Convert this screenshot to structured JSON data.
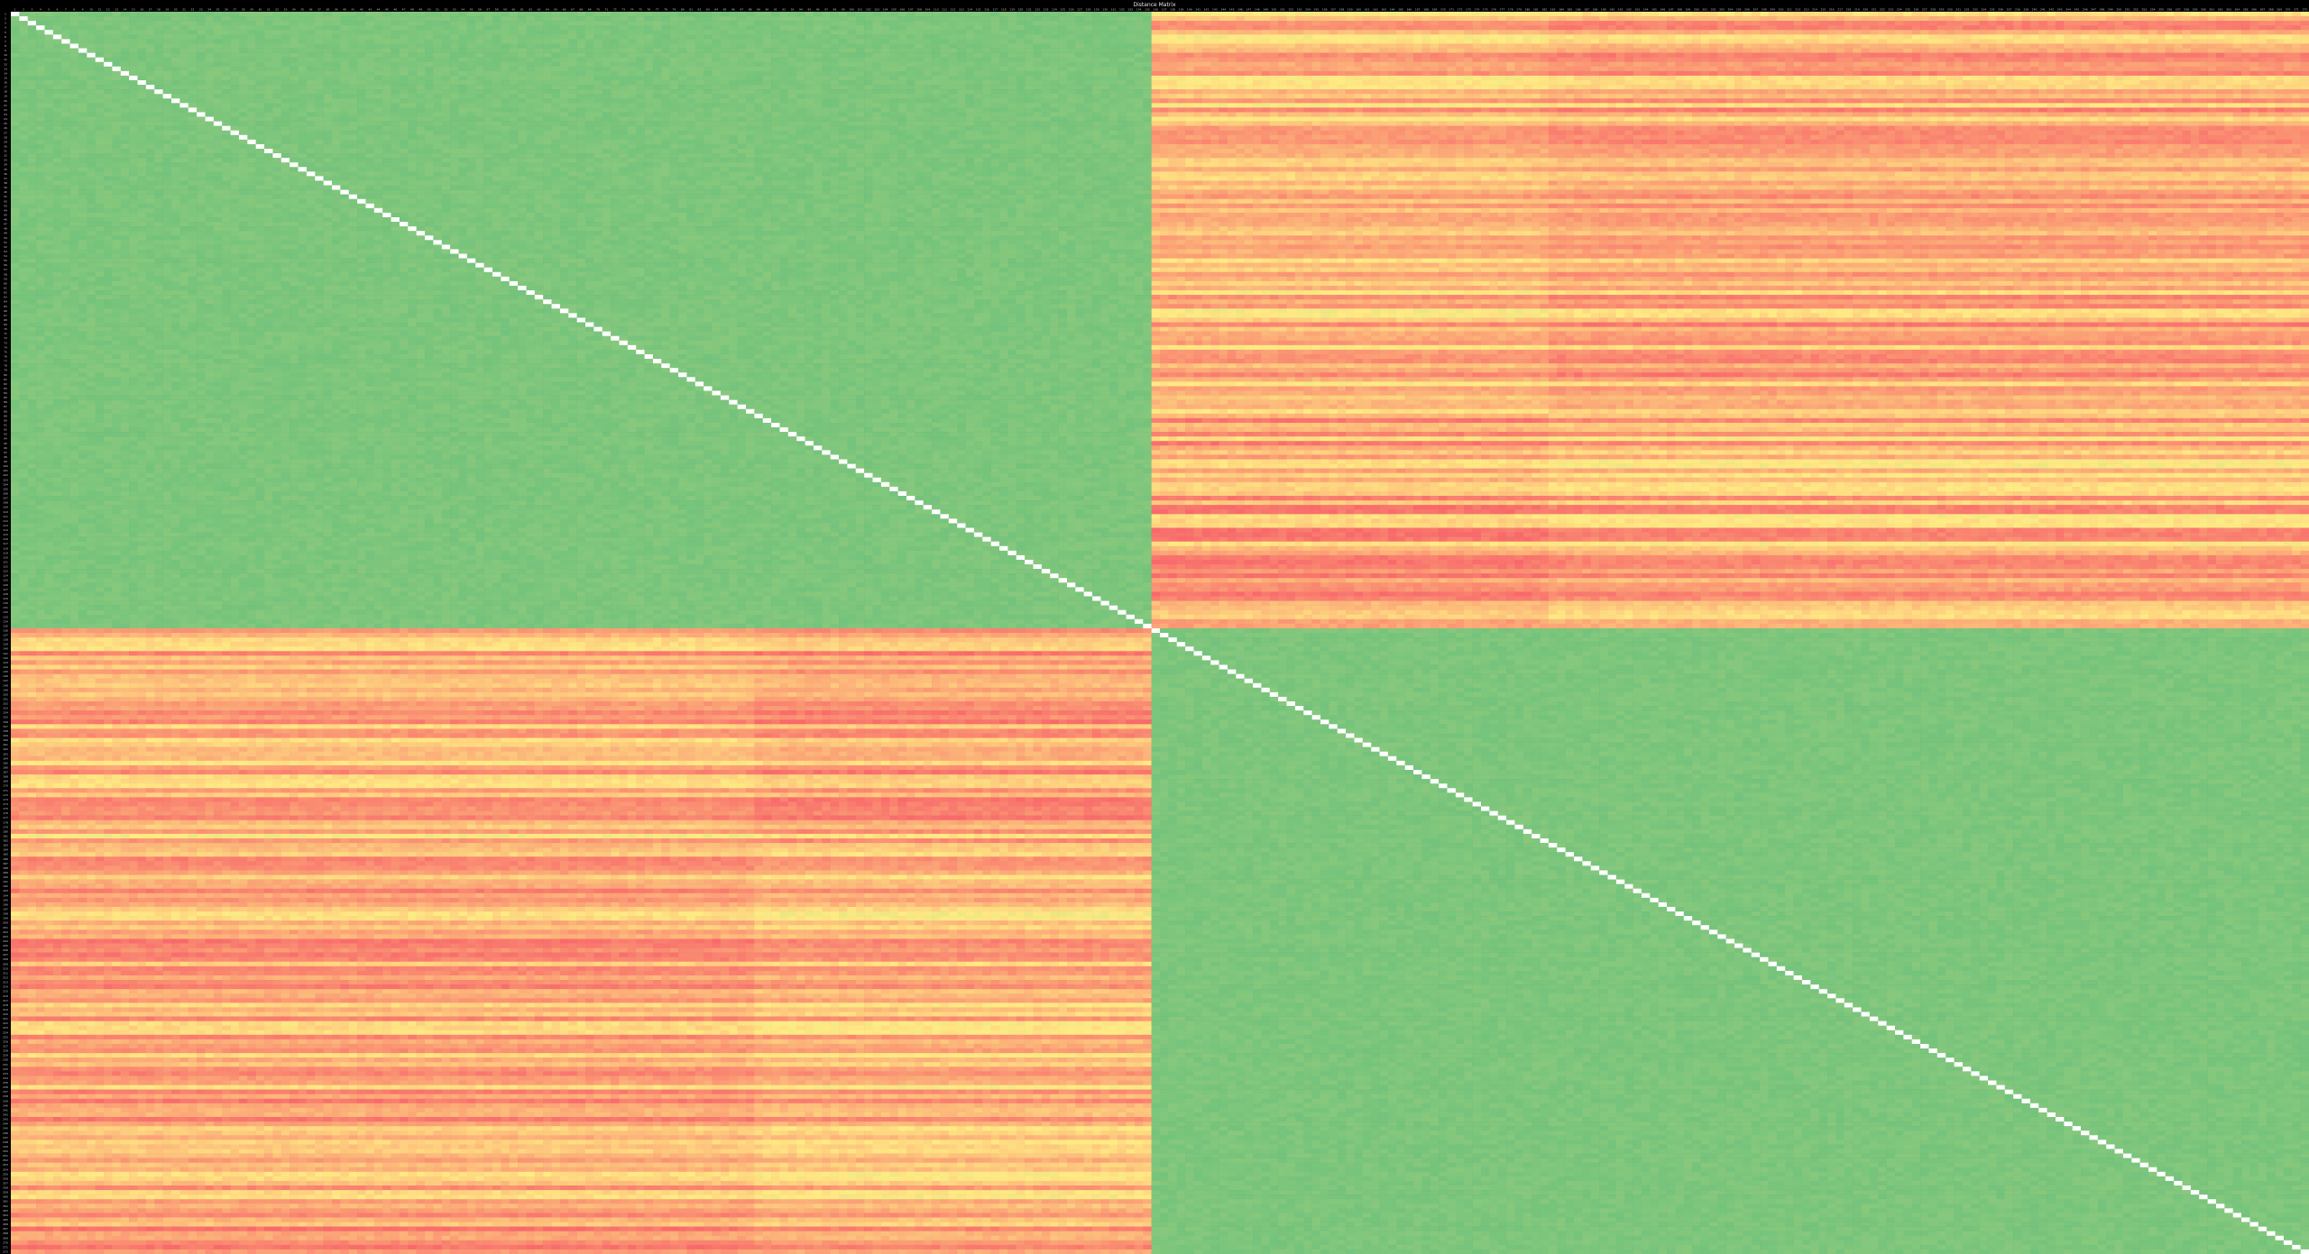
{
  "sheet": {
    "title": "Distance Matrix"
  },
  "colors": {
    "background": "#000000",
    "header_text": "#cfcfcf",
    "diagonal": "#ffffff",
    "low": "#63be7b",
    "mid": "#ffeb84",
    "high": "#f8696b"
  },
  "chart_data": {
    "type": "heatmap",
    "title": "Distance Matrix",
    "n": 272,
    "groups": [
      {
        "start": 1,
        "end": 135
      },
      {
        "start": 136,
        "end": 272
      }
    ],
    "subgroups": [
      {
        "start": 1,
        "end": 88
      },
      {
        "start": 89,
        "end": 135
      },
      {
        "start": 136,
        "end": 182
      },
      {
        "start": 183,
        "end": 272
      }
    ],
    "diagonal_value": 0,
    "value_ranges": {
      "within_group": [
        0.8,
        2.2
      ],
      "between_group": [
        4.0,
        9.0
      ]
    },
    "color_scale": {
      "type": "3-color",
      "min_color": "#63be7b",
      "mid_color": "#ffeb84",
      "max_color": "#f8696b"
    },
    "row_labels_pattern": "1..272",
    "col_labels_pattern": "1..272",
    "legend": "none",
    "grid": false
  }
}
